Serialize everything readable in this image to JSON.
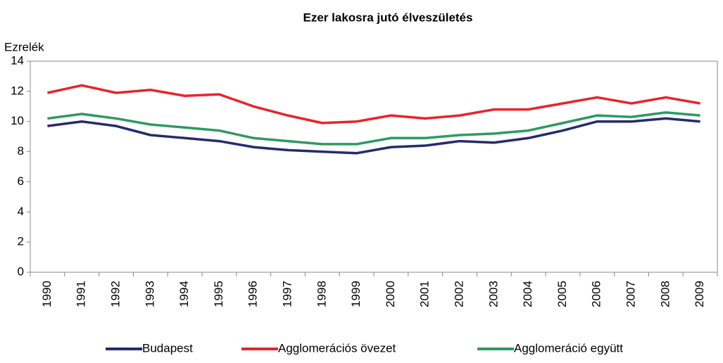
{
  "chart_data": {
    "type": "line",
    "title": "Ezer lakosra jutó élveszületés",
    "y_label": "Ezrelék",
    "categories": [
      "1990",
      "1991",
      "1992",
      "1993",
      "1994",
      "1995",
      "1996",
      "1997",
      "1998",
      "1999",
      "2000",
      "2001",
      "2002",
      "2003",
      "2004",
      "2005",
      "2006",
      "2007",
      "2008",
      "2009"
    ],
    "series": [
      {
        "name": "Budapest",
        "color": "#262a6e",
        "values": [
          9.7,
          10.0,
          9.7,
          9.1,
          8.9,
          8.7,
          8.3,
          8.1,
          8.0,
          7.9,
          8.3,
          8.4,
          8.7,
          8.6,
          8.9,
          9.4,
          10.0,
          10.0,
          10.2,
          10.0
        ]
      },
      {
        "name": "Agglomerációs övezet",
        "color": "#e8242a",
        "values": [
          11.9,
          12.4,
          11.9,
          12.1,
          11.7,
          11.8,
          11.0,
          10.4,
          9.9,
          10.0,
          10.4,
          10.2,
          10.4,
          10.8,
          10.8,
          11.2,
          11.6,
          11.2,
          11.6,
          11.2
        ]
      },
      {
        "name": "Agglomeráció együtt",
        "color": "#2e9a64",
        "values": [
          10.2,
          10.5,
          10.2,
          9.8,
          9.6,
          9.4,
          8.9,
          8.7,
          8.5,
          8.5,
          8.9,
          8.9,
          9.1,
          9.2,
          9.4,
          9.9,
          10.4,
          10.3,
          10.6,
          10.4
        ]
      }
    ],
    "ylim": [
      0,
      14
    ],
    "yticks": [
      0,
      2,
      4,
      6,
      8,
      10,
      12,
      14
    ],
    "legend": "bottom"
  }
}
